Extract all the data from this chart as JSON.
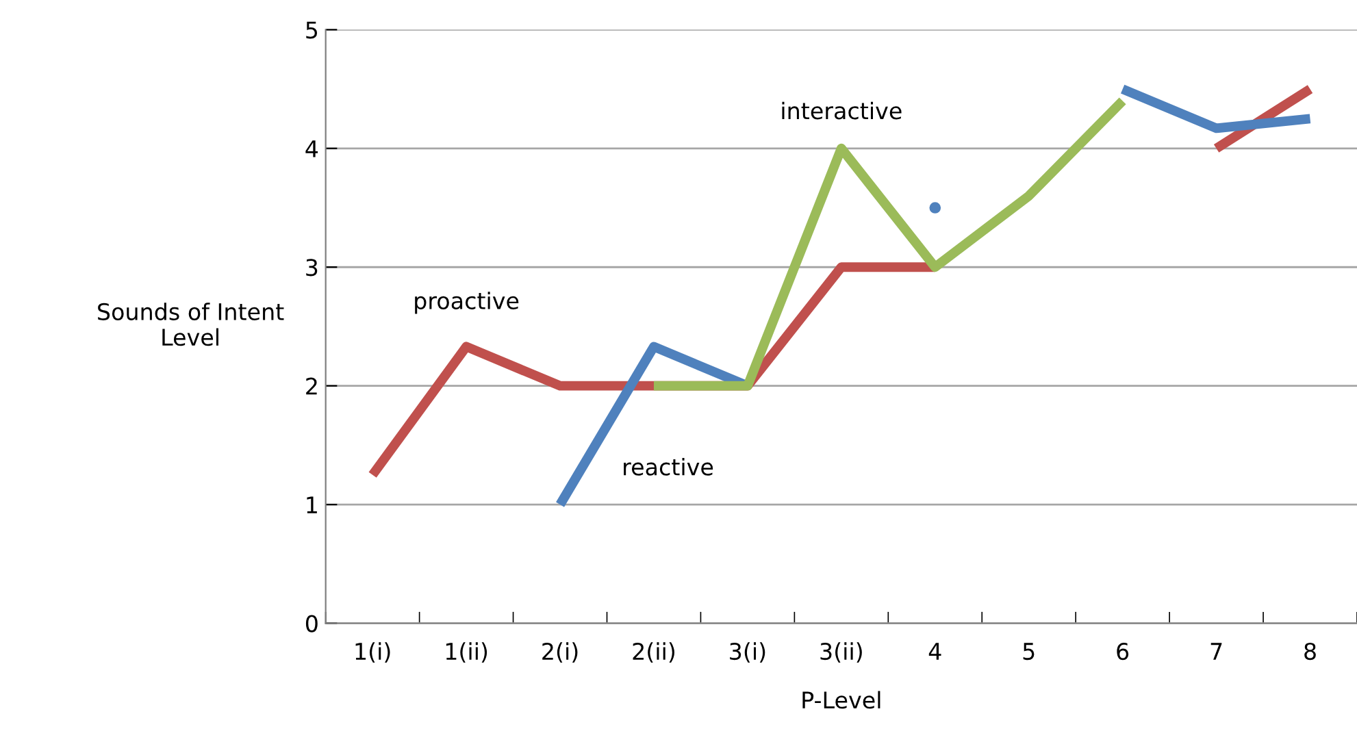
{
  "chart_data": {
    "type": "line",
    "xlabel": "P-Level",
    "ylabel": "Sounds of Intent\nLevel",
    "categories": [
      "1(i)",
      "1(ii)",
      "2(i)",
      "2(ii)",
      "3(i)",
      "3(ii)",
      "4",
      "5",
      "6",
      "7",
      "8"
    ],
    "series": [
      {
        "name": "proactive",
        "color": "#c0504d",
        "values": [
          1.25,
          2.33,
          2.0,
          2.0,
          2.0,
          3.0,
          3.0,
          null,
          null,
          4.0,
          4.5
        ]
      },
      {
        "name": "reactive",
        "color": "#4f81bd",
        "values": [
          null,
          null,
          1.0,
          2.33,
          2.0,
          null,
          3.5,
          null,
          4.5,
          4.17,
          4.25
        ]
      },
      {
        "name": "interactive",
        "color": "#9bbb59",
        "values": [
          null,
          null,
          null,
          2.0,
          2.0,
          4.0,
          3.0,
          3.6,
          4.4,
          null,
          null
        ]
      }
    ],
    "ylim": [
      0,
      5
    ],
    "yticks": [
      0,
      1,
      2,
      3,
      4,
      5
    ],
    "grid": "y",
    "legend": false,
    "marker": "none",
    "line_style": "solid"
  }
}
